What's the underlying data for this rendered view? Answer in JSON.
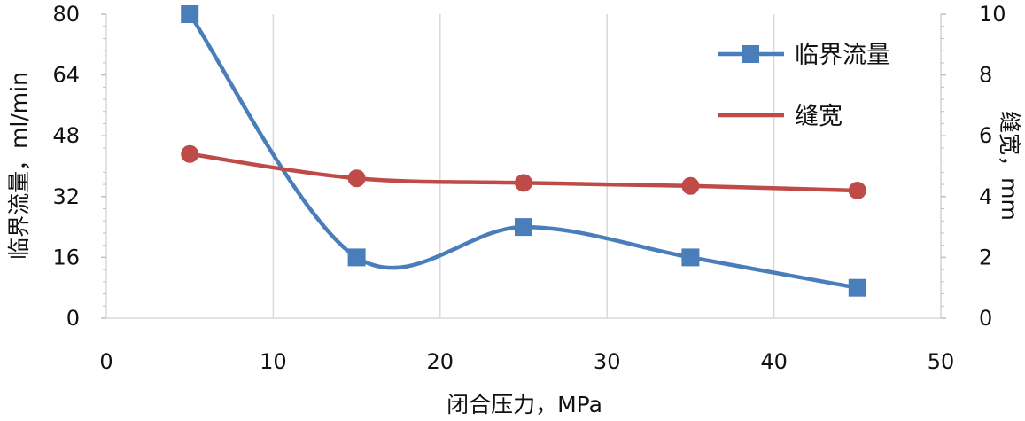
{
  "chart_data": {
    "type": "line",
    "x": [
      5,
      15,
      25,
      35,
      45
    ],
    "xlim": [
      0,
      50
    ],
    "x_ticks": [
      0,
      10,
      20,
      30,
      40,
      50
    ],
    "xlabel": "闭合压力，MPa",
    "ylabel_left": "临界流量，ml/min",
    "ylim_left": [
      0,
      80
    ],
    "y_ticks_left": [
      0,
      16,
      32,
      48,
      64,
      80
    ],
    "ylabel_right": "缝宽，mm",
    "ylim_right": [
      0,
      10
    ],
    "y_ticks_right": [
      0,
      2,
      4,
      6,
      8,
      10
    ],
    "grid": "vertical",
    "smooth": true,
    "legend": "top-right",
    "series": [
      {
        "name": "临界流量",
        "axis": "left",
        "values": [
          80,
          16,
          24,
          16,
          8
        ],
        "color": "#4a7ebb",
        "marker": "square"
      },
      {
        "name": "缝宽",
        "axis": "right",
        "values": [
          5.4,
          4.6,
          4.45,
          4.35,
          4.2
        ],
        "color": "#be4b48",
        "marker": "circle"
      }
    ]
  }
}
